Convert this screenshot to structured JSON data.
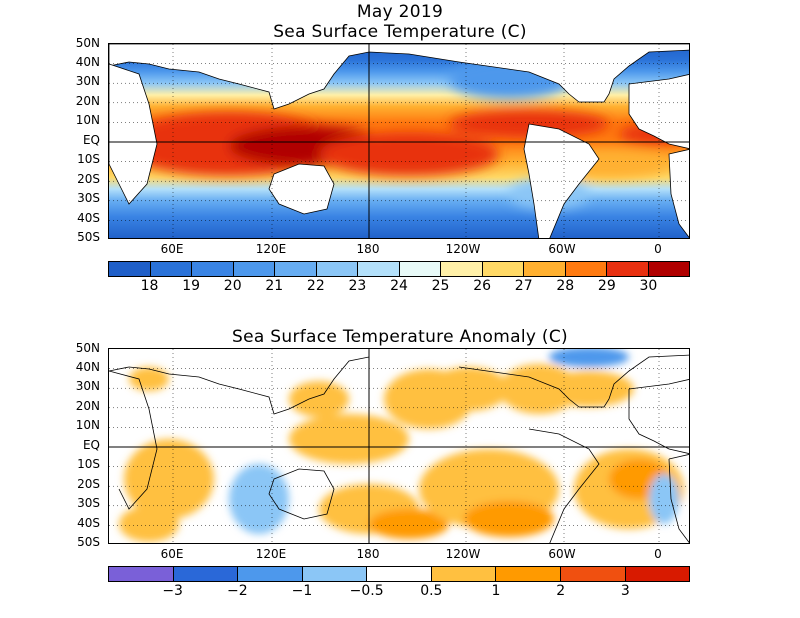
{
  "month_title": "May 2019",
  "panels": [
    {
      "title": "Sea Surface Temperature (C)",
      "lat_labels": [
        "50N",
        "40N",
        "30N",
        "20N",
        "10N",
        "EQ",
        "10S",
        "20S",
        "30S",
        "40S",
        "50S"
      ],
      "lon_labels": [
        "60E",
        "120E",
        "180",
        "120W",
        "60W",
        "0"
      ],
      "colorbar": {
        "colors": [
          "#1f5fc8",
          "#2a72d8",
          "#3a84e4",
          "#4d98ec",
          "#67adf2",
          "#8bc6f6",
          "#b3e0fa",
          "#e8faf8",
          "#fff0a8",
          "#ffd966",
          "#ffb030",
          "#ff7a10",
          "#e83010",
          "#b00000"
        ],
        "labels": [
          "18",
          "19",
          "20",
          "21",
          "22",
          "23",
          "24",
          "25",
          "26",
          "27",
          "28",
          "29",
          "30"
        ]
      }
    },
    {
      "title": "Sea Surface Temperature Anomaly (C)",
      "lat_labels": [
        "50N",
        "40N",
        "30N",
        "20N",
        "10N",
        "EQ",
        "10S",
        "20S",
        "30S",
        "40S",
        "50S"
      ],
      "lon_labels": [
        "60E",
        "120E",
        "180",
        "120W",
        "60W",
        "0"
      ],
      "colorbar": {
        "colors": [
          "#7a60d8",
          "#2a68d8",
          "#4d98ec",
          "#8bc6f6",
          "#ffffff",
          "#ffc040",
          "#ff9a00",
          "#f05010",
          "#d81a00"
        ],
        "labels": [
          "−3",
          "−2",
          "−1",
          "−0.5",
          "0.5",
          "1",
          "2",
          "3"
        ]
      }
    }
  ]
}
